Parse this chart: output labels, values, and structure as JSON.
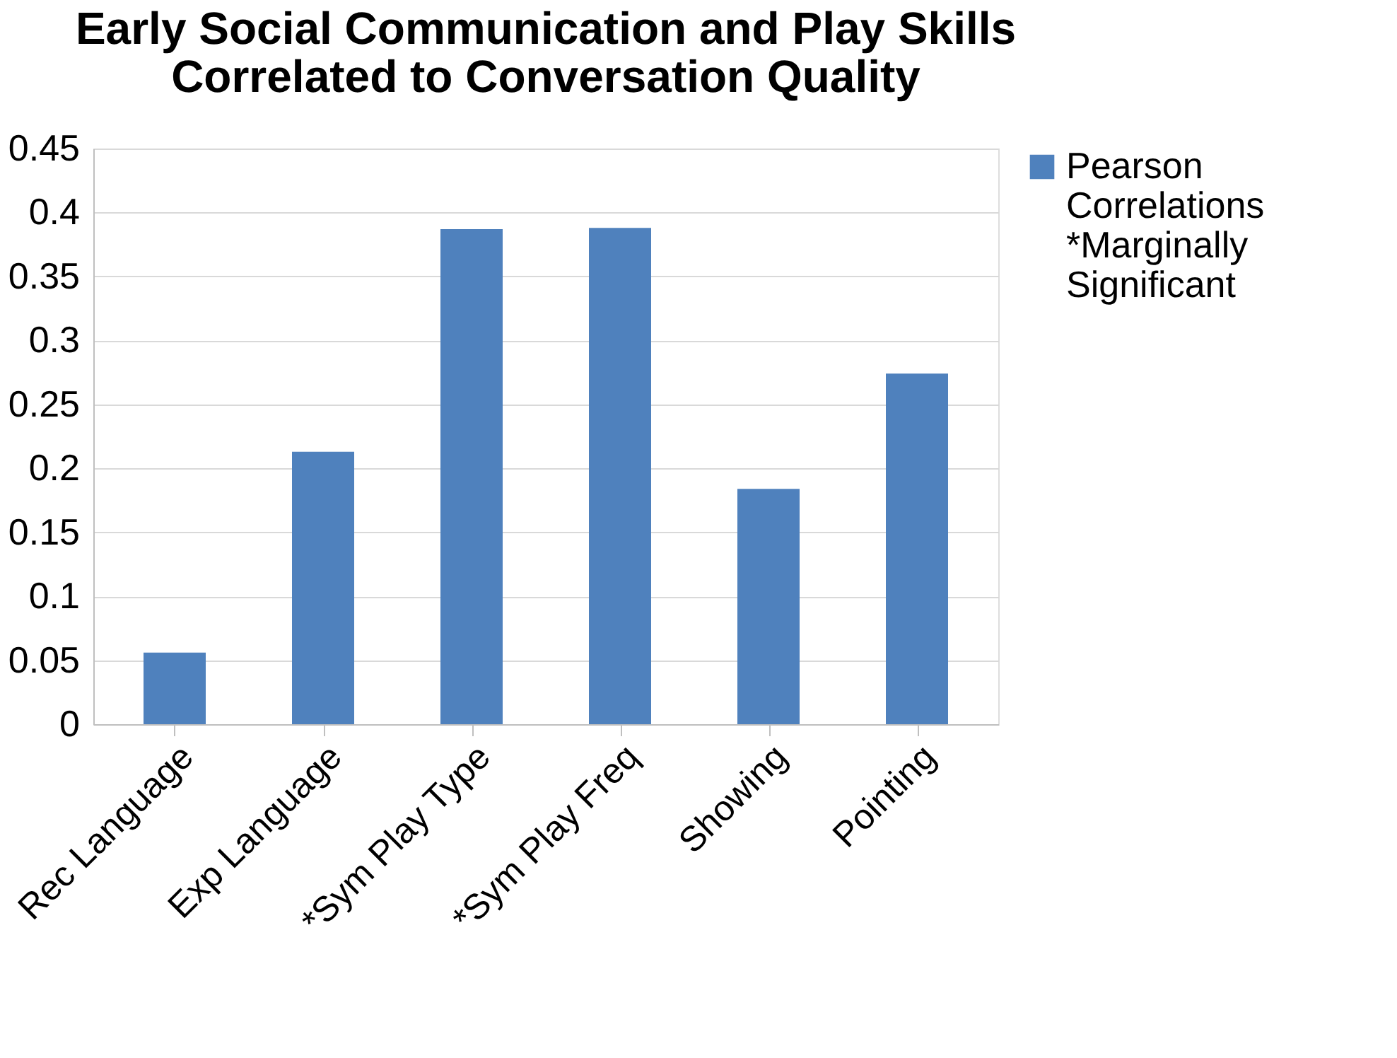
{
  "chart_data": {
    "type": "bar",
    "title": "Early Social Communication and Play Skills Correlated to Conversation Quality",
    "categories": [
      "Rec Language",
      "Exp Language",
      "*Sym Play Type",
      "*Sym Play Freq",
      "Showing",
      "Pointing"
    ],
    "series": [
      {
        "name": "Pearson Correlations *Marginally Significant",
        "color": "#4f81bd",
        "values": [
          0.056,
          0.213,
          0.387,
          0.388,
          0.184,
          0.274
        ]
      }
    ],
    "ylim": [
      0,
      0.45
    ],
    "yticks": [
      0,
      0.05,
      0.1,
      0.15,
      0.2,
      0.25,
      0.3,
      0.35,
      0.4,
      0.45
    ],
    "grid": "y",
    "legend": "right"
  }
}
